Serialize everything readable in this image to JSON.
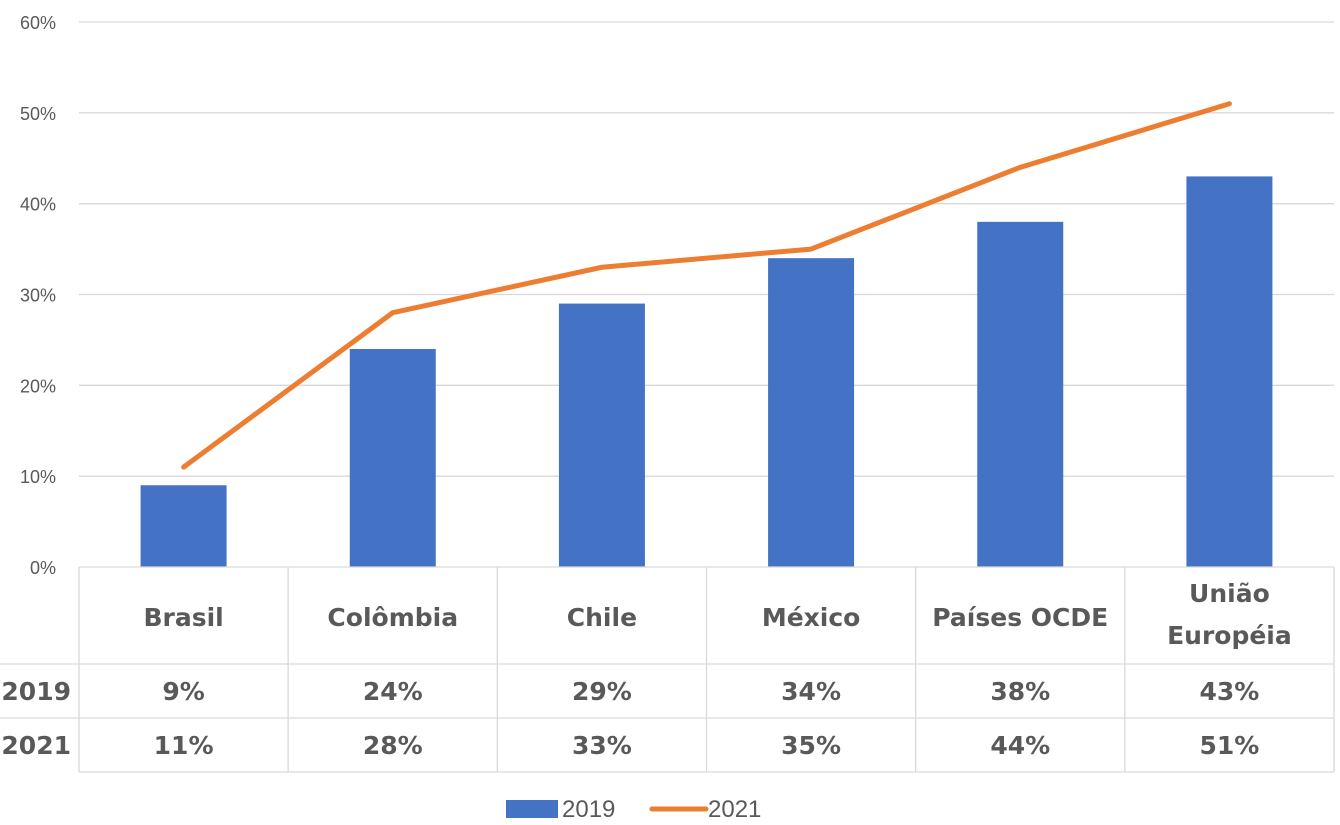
{
  "chart_data": {
    "type": "bar",
    "categories": [
      [
        "Brasil"
      ],
      [
        "Colômbia"
      ],
      [
        "Chile"
      ],
      [
        "México"
      ],
      [
        "Países OCDE"
      ],
      [
        "União",
        "Européia"
      ]
    ],
    "series": [
      {
        "name": "2019",
        "type": "bar",
        "values": [
          9,
          24,
          29,
          34,
          38,
          43
        ],
        "labels": [
          "9%",
          "24%",
          "29%",
          "34%",
          "38%",
          "43%"
        ],
        "color": "#4472C4"
      },
      {
        "name": "2021",
        "type": "line",
        "values": [
          11,
          28,
          33,
          35,
          44,
          51
        ],
        "labels": [
          "11%",
          "28%",
          "33%",
          "35%",
          "44%",
          "51%"
        ],
        "color": "#ED7D31"
      }
    ],
    "yticks": [
      "0%",
      "10%",
      "20%",
      "30%",
      "40%",
      "50%",
      "60%"
    ],
    "ylim": [
      0,
      60
    ],
    "grid": true,
    "legend_position": "bottom",
    "data_table": true
  }
}
